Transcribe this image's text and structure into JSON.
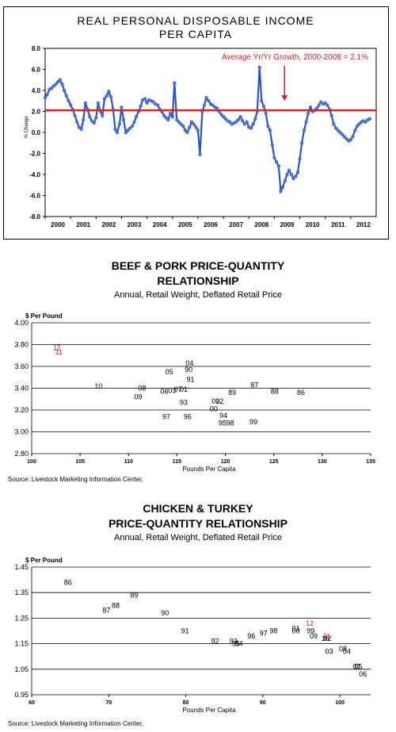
{
  "chart_data": [
    {
      "type": "line",
      "title": "REAL PERSONAL DISPOSABLE INCOME PER CAPITA",
      "title_lines": [
        "REAL PERSONAL DISPOSABLE INCOME",
        "PER CAPITA"
      ],
      "ylabel": "% Change",
      "xlim": [
        2000,
        2013
      ],
      "ylim": [
        -8,
        8
      ],
      "yticks": [
        "8.0",
        "6.0",
        "4.0",
        "2.0",
        "0.0",
        "-2.0",
        "-4.0",
        "-6.0",
        "-8.0"
      ],
      "xticks": [
        "2000",
        "2001",
        "2002",
        "2003",
        "2004",
        "2005",
        "2006",
        "2007",
        "2008",
        "2009",
        "2010",
        "2011",
        "2012"
      ],
      "grid": false,
      "series_color": "#2a55c8",
      "reference_line": {
        "value": 2.1,
        "label": "Average Yr/Yr Growth, 2000-2008 = 2.1%",
        "color": "#e02020"
      },
      "series": [
        {
          "x": [
            2000.0,
            2000.08,
            2000.17,
            2000.25,
            2000.33,
            2000.42,
            2000.5,
            2000.58,
            2000.67,
            2000.75,
            2000.83,
            2000.92,
            2001.0,
            2001.08,
            2001.17,
            2001.25,
            2001.33,
            2001.42,
            2001.5,
            2001.58,
            2001.67,
            2001.75,
            2001.83,
            2001.92,
            2002.0,
            2002.08,
            2002.17,
            2002.25,
            2002.33,
            2002.42,
            2002.5,
            2002.58,
            2002.67,
            2002.75,
            2002.83,
            2002.92,
            2003.0,
            2003.08,
            2003.17,
            2003.25,
            2003.33,
            2003.42,
            2003.5,
            2003.58,
            2003.67,
            2003.75,
            2003.83,
            2003.92,
            2004.0,
            2004.08,
            2004.17,
            2004.25,
            2004.33,
            2004.42,
            2004.5,
            2004.58,
            2004.67,
            2004.75,
            2004.83,
            2004.92,
            2005.0,
            2005.08,
            2005.17,
            2005.25,
            2005.33,
            2005.42,
            2005.5,
            2005.58,
            2005.67,
            2005.75,
            2005.83,
            2005.92,
            2006.0,
            2006.08,
            2006.17,
            2006.25,
            2006.33,
            2006.42,
            2006.5,
            2006.58,
            2006.67,
            2006.75,
            2006.83,
            2006.92,
            2007.0,
            2007.08,
            2007.17,
            2007.25,
            2007.33,
            2007.42,
            2007.5,
            2007.58,
            2007.67,
            2007.75,
            2007.83,
            2007.92,
            2008.0,
            2008.08,
            2008.17,
            2008.25,
            2008.33,
            2008.42,
            2008.5,
            2008.58,
            2008.67,
            2008.75,
            2008.83,
            2008.92,
            2009.0,
            2009.08,
            2009.17,
            2009.25,
            2009.33,
            2009.42,
            2009.5,
            2009.58,
            2009.67,
            2009.75,
            2009.83,
            2009.92,
            2010.0,
            2010.08,
            2010.17,
            2010.25,
            2010.33,
            2010.42,
            2010.5,
            2010.58,
            2010.67,
            2010.75,
            2010.83,
            2010.92,
            2011.0,
            2011.08,
            2011.17,
            2011.25,
            2011.33,
            2011.42,
            2011.5,
            2011.58,
            2011.67,
            2011.75,
            2011.83,
            2011.92,
            2012.0,
            2012.08,
            2012.17,
            2012.25,
            2012.33,
            2012.42,
            2012.5,
            2012.58,
            2012.67,
            2012.75
          ],
          "y": [
            3.3,
            3.6,
            4.1,
            4.2,
            4.4,
            4.6,
            4.8,
            5.0,
            4.6,
            4.0,
            3.5,
            3.0,
            2.6,
            2.2,
            1.6,
            1.0,
            0.5,
            0.3,
            1.2,
            2.8,
            2.2,
            1.5,
            1.1,
            0.9,
            1.4,
            2.8,
            2.0,
            1.6,
            3.2,
            3.5,
            3.9,
            3.4,
            2.2,
            0.3,
            0.0,
            0.8,
            2.4,
            1.2,
            0.0,
            0.2,
            0.4,
            0.6,
            1.0,
            1.5,
            2.0,
            2.5,
            3.1,
            3.2,
            2.8,
            3.1,
            3.0,
            2.9,
            2.7,
            2.6,
            2.2,
            2.0,
            1.6,
            1.4,
            1.2,
            1.8,
            1.5,
            4.7,
            1.2,
            1.0,
            0.8,
            0.6,
            0.2,
            0.0,
            0.5,
            1.0,
            0.8,
            0.5,
            0.2,
            -2.1,
            2.0,
            2.6,
            3.3,
            3.0,
            2.7,
            2.6,
            2.4,
            2.3,
            2.0,
            1.7,
            1.5,
            1.3,
            1.1,
            1.0,
            0.8,
            0.9,
            1.0,
            1.2,
            1.5,
            1.1,
            0.8,
            1.0,
            0.5,
            0.4,
            0.8,
            1.3,
            2.0,
            6.2,
            3.0,
            2.5,
            1.8,
            0.6,
            0.2,
            -1.2,
            -2.4,
            -2.8,
            -3.2,
            -5.6,
            -5.2,
            -4.6,
            -4.0,
            -3.6,
            -4.0,
            -4.4,
            -4.2,
            -3.8,
            -2.5,
            -1.0,
            0.2,
            1.0,
            1.8,
            2.4,
            2.0,
            2.1,
            2.3,
            2.6,
            2.9,
            2.7,
            2.8,
            2.6,
            2.2,
            1.6,
            0.8,
            0.4,
            0.2,
            0.0,
            -0.2,
            -0.4,
            -0.6,
            -0.8,
            -0.7,
            -0.4,
            0.2,
            0.6,
            0.8,
            1.0,
            1.1,
            1.0,
            1.2,
            1.3
          ]
        }
      ]
    },
    {
      "type": "scatter",
      "title_lines": [
        "BEEF & PORK PRICE-QUANTITY",
        "RELATIONSHIP"
      ],
      "subtitle": "Annual, Retail Weight, Deflated Retail Price",
      "ylabel": "$ Per Pound",
      "xlabel": "Pounds Per Capita",
      "xlim": [
        100,
        135
      ],
      "ylim": [
        2.8,
        4.0
      ],
      "xticks": [
        "100",
        "105",
        "110",
        "115",
        "120",
        "125",
        "130",
        "135"
      ],
      "yticks": [
        "4.00",
        "3.80",
        "3.60",
        "3.40",
        "3.20",
        "3.00",
        "2.80"
      ],
      "grid": true,
      "source": "Source:  Livestock Marketing Information Center,",
      "points": [
        {
          "label": "86",
          "x": 127.8,
          "y": 3.36,
          "color": "#000000"
        },
        {
          "label": "87",
          "x": 123.0,
          "y": 3.43,
          "color": "#000000"
        },
        {
          "label": "88",
          "x": 125.1,
          "y": 3.37,
          "color": "#000000"
        },
        {
          "label": "89",
          "x": 120.7,
          "y": 3.36,
          "color": "#000000"
        },
        {
          "label": "90",
          "x": 116.2,
          "y": 3.57,
          "color": "#000000"
        },
        {
          "label": "91",
          "x": 116.4,
          "y": 3.48,
          "color": "#000000"
        },
        {
          "label": "92",
          "x": 119.4,
          "y": 3.28,
          "color": "#000000"
        },
        {
          "label": "93",
          "x": 115.7,
          "y": 3.27,
          "color": "#000000"
        },
        {
          "label": "94",
          "x": 119.8,
          "y": 3.15,
          "color": "#000000"
        },
        {
          "label": "95",
          "x": 119.7,
          "y": 3.08,
          "color": "#000000"
        },
        {
          "label": "96",
          "x": 116.1,
          "y": 3.14,
          "color": "#000000"
        },
        {
          "label": "97",
          "x": 113.9,
          "y": 3.14,
          "color": "#000000"
        },
        {
          "label": "98",
          "x": 120.5,
          "y": 3.08,
          "color": "#000000"
        },
        {
          "label": "99",
          "x": 122.9,
          "y": 3.09,
          "color": "#000000"
        },
        {
          "label": "00",
          "x": 118.8,
          "y": 3.21,
          "color": "#000000"
        },
        {
          "label": "01",
          "x": 115.7,
          "y": 3.39,
          "color": "#000000"
        },
        {
          "label": "02",
          "x": 119.0,
          "y": 3.28,
          "color": "#000000"
        },
        {
          "label": "03",
          "x": 114.5,
          "y": 3.38,
          "color": "#000000"
        },
        {
          "label": "04",
          "x": 116.3,
          "y": 3.63,
          "color": "#000000"
        },
        {
          "label": "05",
          "x": 114.2,
          "y": 3.55,
          "color": "#000000"
        },
        {
          "label": "06",
          "x": 113.7,
          "y": 3.37,
          "color": "#000000"
        },
        {
          "label": "07",
          "x": 115.1,
          "y": 3.39,
          "color": "#000000"
        },
        {
          "label": "08",
          "x": 111.4,
          "y": 3.4,
          "color": "#000000"
        },
        {
          "label": "09",
          "x": 111.0,
          "y": 3.32,
          "color": "#000000"
        },
        {
          "label": "10",
          "x": 106.9,
          "y": 3.42,
          "color": "#000000"
        },
        {
          "label": "11",
          "x": 102.8,
          "y": 3.73,
          "color": "#e02020"
        },
        {
          "label": "12",
          "x": 102.6,
          "y": 3.77,
          "color": "#e02020"
        }
      ]
    },
    {
      "type": "scatter",
      "title_lines": [
        "CHICKEN & TURKEY",
        "PRICE-QUANTITY RELATIONSHIP"
      ],
      "subtitle": "Annual, Retail Weight, Deflated Retail Price",
      "ylabel": "$ Per Pound",
      "xlabel": "Pounds Per Capita",
      "xlim": [
        60,
        104
      ],
      "ylim": [
        0.95,
        1.45
      ],
      "xticks": [
        "60",
        "70",
        "80",
        "90",
        "100"
      ],
      "yticks": [
        "1.45",
        "1.35",
        "1.25",
        "1.15",
        "1.05",
        "0.95"
      ],
      "grid": true,
      "source": "Source:  Livestock Marketing Information Center,",
      "points": [
        {
          "label": "86",
          "x": 64.7,
          "y": 1.39,
          "color": "#000000"
        },
        {
          "label": "87",
          "x": 69.7,
          "y": 1.28,
          "color": "#000000"
        },
        {
          "label": "88",
          "x": 70.9,
          "y": 1.3,
          "color": "#000000"
        },
        {
          "label": "89",
          "x": 73.3,
          "y": 1.34,
          "color": "#000000"
        },
        {
          "label": "90",
          "x": 77.3,
          "y": 1.27,
          "color": "#000000"
        },
        {
          "label": "91",
          "x": 79.9,
          "y": 1.2,
          "color": "#000000"
        },
        {
          "label": "92",
          "x": 83.8,
          "y": 1.16,
          "color": "#000000"
        },
        {
          "label": "93",
          "x": 86.2,
          "y": 1.16,
          "color": "#000000"
        },
        {
          "label": "94",
          "x": 86.9,
          "y": 1.15,
          "color": "#000000"
        },
        {
          "label": "95",
          "x": 86.5,
          "y": 1.15,
          "color": "#000000"
        },
        {
          "label": "96",
          "x": 88.5,
          "y": 1.18,
          "color": "#000000"
        },
        {
          "label": "97",
          "x": 90.1,
          "y": 1.19,
          "color": "#000000"
        },
        {
          "label": "98",
          "x": 91.4,
          "y": 1.2,
          "color": "#000000"
        },
        {
          "label": "99",
          "x": 96.2,
          "y": 1.2,
          "color": "#000000"
        },
        {
          "label": "00",
          "x": 94.3,
          "y": 1.2,
          "color": "#000000"
        },
        {
          "label": "01",
          "x": 94.3,
          "y": 1.21,
          "color": "#000000"
        },
        {
          "label": "02",
          "x": 98.4,
          "y": 1.17,
          "color": "#000000"
        },
        {
          "label": "03",
          "x": 98.6,
          "y": 1.12,
          "color": "#000000"
        },
        {
          "label": "04",
          "x": 100.9,
          "y": 1.12,
          "color": "#000000"
        },
        {
          "label": "05",
          "x": 102.4,
          "y": 1.06,
          "color": "#000000"
        },
        {
          "label": "06",
          "x": 103.0,
          "y": 1.03,
          "color": "#000000"
        },
        {
          "label": "07",
          "x": 102.2,
          "y": 1.06,
          "color": "#000000"
        },
        {
          "label": "08",
          "x": 100.4,
          "y": 1.13,
          "color": "#000000"
        },
        {
          "label": "09",
          "x": 96.6,
          "y": 1.18,
          "color": "#000000"
        },
        {
          "label": "10",
          "x": 98.1,
          "y": 1.17,
          "color": "#000000"
        },
        {
          "label": "11",
          "x": 98.3,
          "y": 1.18,
          "color": "#e02020"
        },
        {
          "label": "12",
          "x": 96.1,
          "y": 1.23,
          "color": "#e02020"
        }
      ]
    }
  ]
}
